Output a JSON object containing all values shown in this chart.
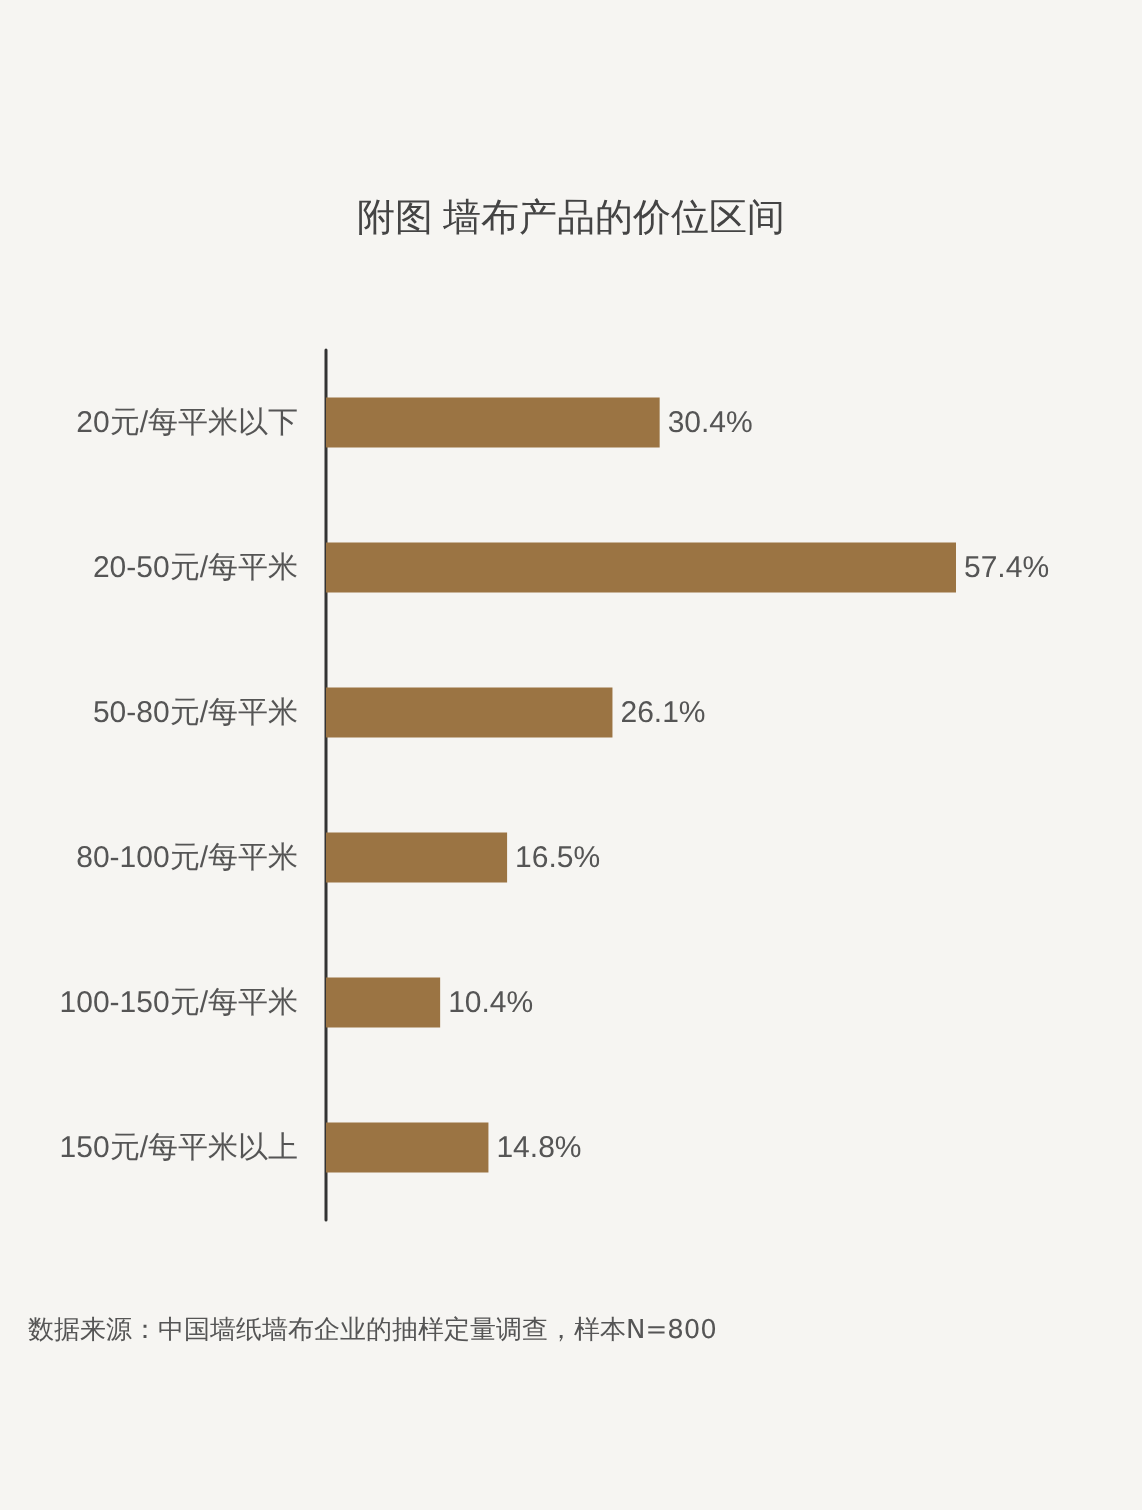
{
  "chart_data": {
    "type": "bar",
    "orientation": "horizontal",
    "title": "附图 墙布产品的价位区间",
    "categories": [
      "20元/每平米以下",
      "20-50元/每平米",
      "50-80元/每平米",
      "80-100元/每平米",
      "100-150元/每平米",
      "150元/每平米以上"
    ],
    "values": [
      30.4,
      57.4,
      26.1,
      16.5,
      10.4,
      14.8
    ],
    "value_labels": [
      "30.4%",
      "57.4%",
      "26.1%",
      "16.5%",
      "10.4%",
      "14.8%"
    ],
    "color": "#9b7443",
    "annotations": [
      "数据来源：中国墙纸墙布企业的抽样定量调查，样本N=800"
    ]
  }
}
